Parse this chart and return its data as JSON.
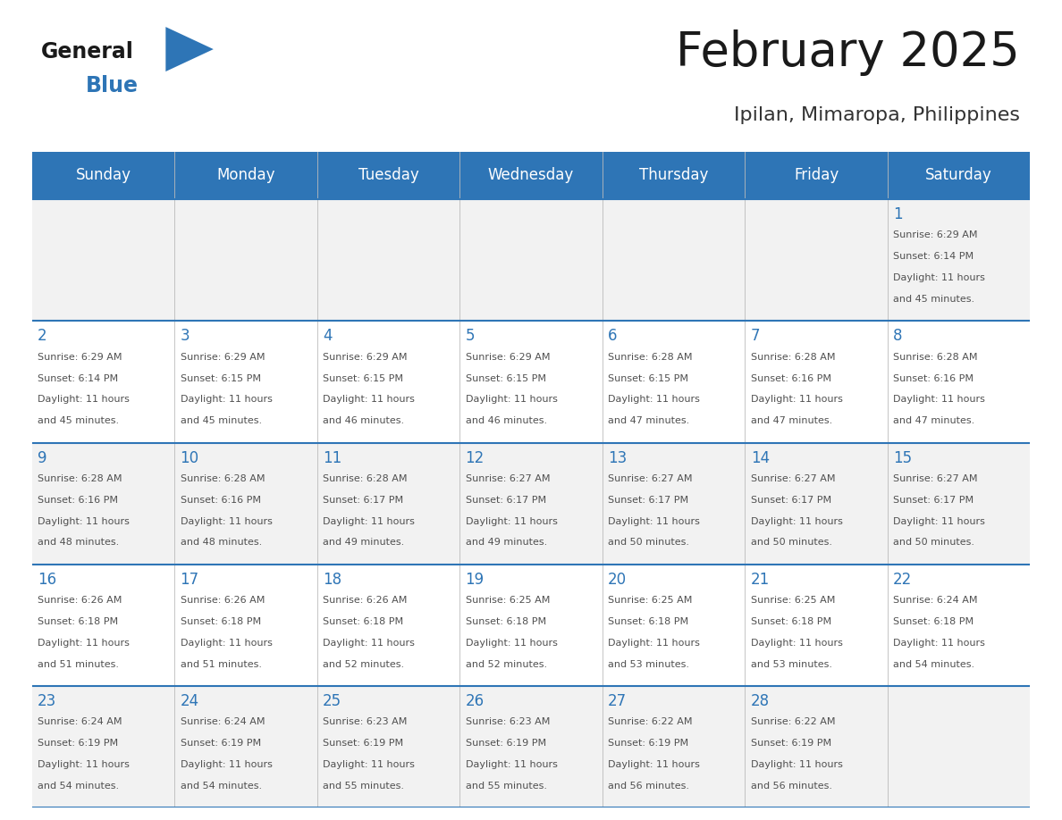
{
  "title": "February 2025",
  "subtitle": "Ipilan, Mimaropa, Philippines",
  "days_of_week": [
    "Sunday",
    "Monday",
    "Tuesday",
    "Wednesday",
    "Thursday",
    "Friday",
    "Saturday"
  ],
  "header_bg_color": "#2E75B6",
  "header_text_color": "#FFFFFF",
  "row_bg_colors": [
    "#F2F2F2",
    "#FFFFFF",
    "#F2F2F2",
    "#FFFFFF",
    "#F2F2F2"
  ],
  "grid_line_color": "#2E75B6",
  "title_color": "#1A1A1A",
  "subtitle_color": "#333333",
  "day_number_color": "#2E75B6",
  "cell_text_color": "#505050",
  "cell_text_fontsize": 8.0,
  "day_number_fontsize": 12,
  "header_fontsize": 12,
  "title_fontsize": 38,
  "subtitle_fontsize": 16,
  "calendar_data": [
    [
      null,
      null,
      null,
      null,
      null,
      null,
      {
        "day": 1,
        "sunrise": "6:29 AM",
        "sunset": "6:14 PM",
        "daylight_line1": "Daylight: 11 hours",
        "daylight_line2": "and 45 minutes."
      }
    ],
    [
      {
        "day": 2,
        "sunrise": "6:29 AM",
        "sunset": "6:14 PM",
        "daylight_line1": "Daylight: 11 hours",
        "daylight_line2": "and 45 minutes."
      },
      {
        "day": 3,
        "sunrise": "6:29 AM",
        "sunset": "6:15 PM",
        "daylight_line1": "Daylight: 11 hours",
        "daylight_line2": "and 45 minutes."
      },
      {
        "day": 4,
        "sunrise": "6:29 AM",
        "sunset": "6:15 PM",
        "daylight_line1": "Daylight: 11 hours",
        "daylight_line2": "and 46 minutes."
      },
      {
        "day": 5,
        "sunrise": "6:29 AM",
        "sunset": "6:15 PM",
        "daylight_line1": "Daylight: 11 hours",
        "daylight_line2": "and 46 minutes."
      },
      {
        "day": 6,
        "sunrise": "6:28 AM",
        "sunset": "6:15 PM",
        "daylight_line1": "Daylight: 11 hours",
        "daylight_line2": "and 47 minutes."
      },
      {
        "day": 7,
        "sunrise": "6:28 AM",
        "sunset": "6:16 PM",
        "daylight_line1": "Daylight: 11 hours",
        "daylight_line2": "and 47 minutes."
      },
      {
        "day": 8,
        "sunrise": "6:28 AM",
        "sunset": "6:16 PM",
        "daylight_line1": "Daylight: 11 hours",
        "daylight_line2": "and 47 minutes."
      }
    ],
    [
      {
        "day": 9,
        "sunrise": "6:28 AM",
        "sunset": "6:16 PM",
        "daylight_line1": "Daylight: 11 hours",
        "daylight_line2": "and 48 minutes."
      },
      {
        "day": 10,
        "sunrise": "6:28 AM",
        "sunset": "6:16 PM",
        "daylight_line1": "Daylight: 11 hours",
        "daylight_line2": "and 48 minutes."
      },
      {
        "day": 11,
        "sunrise": "6:28 AM",
        "sunset": "6:17 PM",
        "daylight_line1": "Daylight: 11 hours",
        "daylight_line2": "and 49 minutes."
      },
      {
        "day": 12,
        "sunrise": "6:27 AM",
        "sunset": "6:17 PM",
        "daylight_line1": "Daylight: 11 hours",
        "daylight_line2": "and 49 minutes."
      },
      {
        "day": 13,
        "sunrise": "6:27 AM",
        "sunset": "6:17 PM",
        "daylight_line1": "Daylight: 11 hours",
        "daylight_line2": "and 50 minutes."
      },
      {
        "day": 14,
        "sunrise": "6:27 AM",
        "sunset": "6:17 PM",
        "daylight_line1": "Daylight: 11 hours",
        "daylight_line2": "and 50 minutes."
      },
      {
        "day": 15,
        "sunrise": "6:27 AM",
        "sunset": "6:17 PM",
        "daylight_line1": "Daylight: 11 hours",
        "daylight_line2": "and 50 minutes."
      }
    ],
    [
      {
        "day": 16,
        "sunrise": "6:26 AM",
        "sunset": "6:18 PM",
        "daylight_line1": "Daylight: 11 hours",
        "daylight_line2": "and 51 minutes."
      },
      {
        "day": 17,
        "sunrise": "6:26 AM",
        "sunset": "6:18 PM",
        "daylight_line1": "Daylight: 11 hours",
        "daylight_line2": "and 51 minutes."
      },
      {
        "day": 18,
        "sunrise": "6:26 AM",
        "sunset": "6:18 PM",
        "daylight_line1": "Daylight: 11 hours",
        "daylight_line2": "and 52 minutes."
      },
      {
        "day": 19,
        "sunrise": "6:25 AM",
        "sunset": "6:18 PM",
        "daylight_line1": "Daylight: 11 hours",
        "daylight_line2": "and 52 minutes."
      },
      {
        "day": 20,
        "sunrise": "6:25 AM",
        "sunset": "6:18 PM",
        "daylight_line1": "Daylight: 11 hours",
        "daylight_line2": "and 53 minutes."
      },
      {
        "day": 21,
        "sunrise": "6:25 AM",
        "sunset": "6:18 PM",
        "daylight_line1": "Daylight: 11 hours",
        "daylight_line2": "and 53 minutes."
      },
      {
        "day": 22,
        "sunrise": "6:24 AM",
        "sunset": "6:18 PM",
        "daylight_line1": "Daylight: 11 hours",
        "daylight_line2": "and 54 minutes."
      }
    ],
    [
      {
        "day": 23,
        "sunrise": "6:24 AM",
        "sunset": "6:19 PM",
        "daylight_line1": "Daylight: 11 hours",
        "daylight_line2": "and 54 minutes."
      },
      {
        "day": 24,
        "sunrise": "6:24 AM",
        "sunset": "6:19 PM",
        "daylight_line1": "Daylight: 11 hours",
        "daylight_line2": "and 54 minutes."
      },
      {
        "day": 25,
        "sunrise": "6:23 AM",
        "sunset": "6:19 PM",
        "daylight_line1": "Daylight: 11 hours",
        "daylight_line2": "and 55 minutes."
      },
      {
        "day": 26,
        "sunrise": "6:23 AM",
        "sunset": "6:19 PM",
        "daylight_line1": "Daylight: 11 hours",
        "daylight_line2": "and 55 minutes."
      },
      {
        "day": 27,
        "sunrise": "6:22 AM",
        "sunset": "6:19 PM",
        "daylight_line1": "Daylight: 11 hours",
        "daylight_line2": "and 56 minutes."
      },
      {
        "day": 28,
        "sunrise": "6:22 AM",
        "sunset": "6:19 PM",
        "daylight_line1": "Daylight: 11 hours",
        "daylight_line2": "and 56 minutes."
      },
      null
    ]
  ],
  "logo_general_color": "#1A1A1A",
  "logo_blue_color": "#2E75B6",
  "logo_triangle_color": "#2E75B6"
}
